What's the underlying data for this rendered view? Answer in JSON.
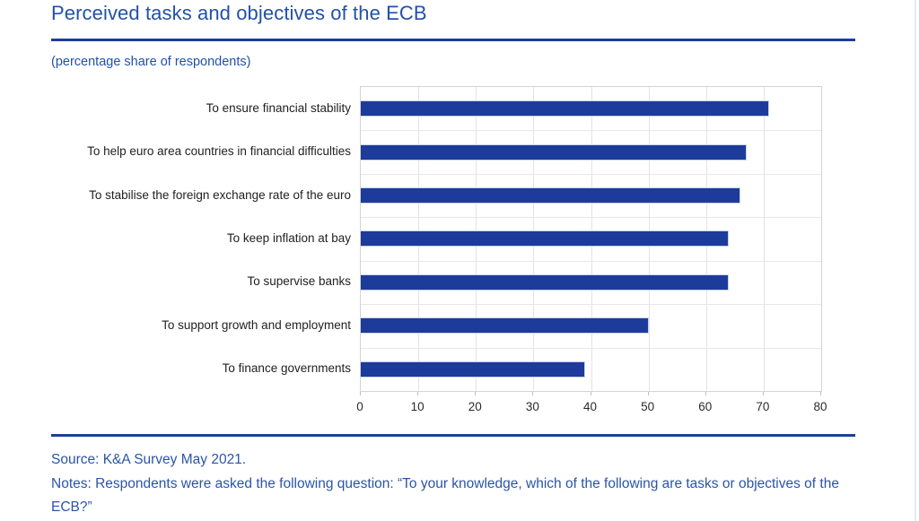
{
  "page": {
    "title": "Perceived tasks and objectives of the ECB",
    "subtitle": "(percentage share of respondents)",
    "source": "Source: K&A Survey May 2021.",
    "notes": "Notes: Respondents were asked the following question: “To your knowledge, which of the following are tasks or objectives of the ECB?”"
  },
  "colors": {
    "heading_blue": "#2251a8",
    "rule_blue": "#1b3f9b",
    "bar_blue": "#1d3b9a",
    "grid_gray": "#e4e4e4",
    "label_black": "#1f1f1f"
  },
  "chart_data": {
    "type": "bar",
    "orientation": "horizontal",
    "title": "Perceived tasks and objectives of the ECB",
    "subtitle": "(percentage share of respondents)",
    "categories": [
      "To ensure financial stability",
      "To help euro area countries in financial difficulties",
      "To stabilise the foreign exchange rate of the euro",
      "To keep inflation at bay",
      "To supervise banks",
      "To support growth and employment",
      "To finance governments"
    ],
    "values": [
      71,
      67,
      66,
      64,
      64,
      50,
      39
    ],
    "xlabel": "",
    "ylabel": "",
    "xlim": [
      0,
      80
    ],
    "xticks": [
      0,
      10,
      20,
      30,
      40,
      50,
      60,
      70,
      80
    ],
    "grid": true,
    "legend": false
  }
}
